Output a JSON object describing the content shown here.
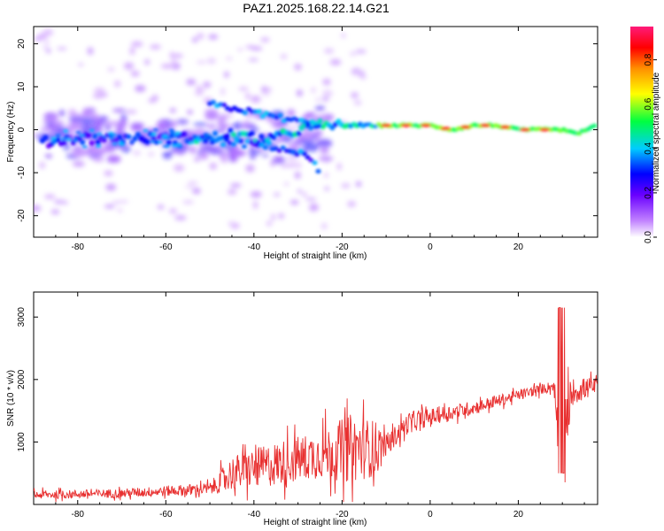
{
  "title": "PAZ1.2025.168.22.14.G21",
  "chart_data": [
    {
      "type": "heatmap",
      "xlabel": "Height of straight line (km)",
      "ylabel": "Frequency (Hz)",
      "xlim": [
        -90,
        38
      ],
      "ylim": [
        -25,
        24
      ],
      "xticks": [
        -80,
        -60,
        -40,
        -20,
        0,
        20
      ],
      "yticks": [
        -20,
        -10,
        0,
        10,
        20
      ],
      "colorbar": {
        "label": "Normalized spectral amplitude",
        "range": [
          0,
          0.95
        ],
        "ticks": [
          0.0,
          0.2,
          0.4,
          0.6,
          0.8
        ],
        "colors": [
          "#ffffff",
          "#9b30ff",
          "#0000ff",
          "#00ffff",
          "#00ff00",
          "#ffff00",
          "#ff8000",
          "#ff0000",
          "#ff1493"
        ]
      },
      "main_trace": [
        {
          "x": -88,
          "y": -3
        },
        {
          "x": -80,
          "y": -2
        },
        {
          "x": -70,
          "y": -2
        },
        {
          "x": -60,
          "y": -2
        },
        {
          "x": -50,
          "y": -2
        },
        {
          "x": -45,
          "y": -1
        },
        {
          "x": -40,
          "y": -2
        },
        {
          "x": -35,
          "y": -2
        },
        {
          "x": -30,
          "y": 0
        },
        {
          "x": -25,
          "y": 1
        },
        {
          "x": -20,
          "y": 1
        },
        {
          "x": -15,
          "y": 1
        },
        {
          "x": -10,
          "y": 1
        },
        {
          "x": -5,
          "y": 1
        },
        {
          "x": 0,
          "y": 1
        },
        {
          "x": 5,
          "y": 0
        },
        {
          "x": 10,
          "y": 1
        },
        {
          "x": 15,
          "y": 1
        },
        {
          "x": 20,
          "y": 0
        },
        {
          "x": 25,
          "y": 0
        },
        {
          "x": 30,
          "y": 0
        },
        {
          "x": 33,
          "y": -1
        },
        {
          "x": 38,
          "y": 1
        }
      ],
      "upper_branch": [
        {
          "x": -50,
          "y": 6
        },
        {
          "x": -45,
          "y": 5
        },
        {
          "x": -40,
          "y": 4
        },
        {
          "x": -35,
          "y": 3
        },
        {
          "x": -30,
          "y": 2
        },
        {
          "x": -25,
          "y": 1
        }
      ],
      "lower_branch": [
        {
          "x": -55,
          "y": -2
        },
        {
          "x": -45,
          "y": -3
        },
        {
          "x": -35,
          "y": -4
        },
        {
          "x": -28,
          "y": -6
        },
        {
          "x": -25,
          "y": -10
        }
      ]
    },
    {
      "type": "line",
      "xlabel": "Height of straight line (km)",
      "ylabel": "SNR (10 * v/v)",
      "xlim": [
        -90,
        38
      ],
      "ylim": [
        0,
        3400
      ],
      "xticks": [
        -80,
        -60,
        -40,
        -20,
        0,
        20
      ],
      "yticks": [
        1000,
        2000,
        3000
      ],
      "color": "#e83030",
      "envelope": [
        {
          "x": -90,
          "mean": 150,
          "amp": 120
        },
        {
          "x": -70,
          "mean": 180,
          "amp": 130
        },
        {
          "x": -50,
          "mean": 250,
          "amp": 180
        },
        {
          "x": -45,
          "mean": 500,
          "amp": 500
        },
        {
          "x": -35,
          "mean": 650,
          "amp": 650
        },
        {
          "x": -25,
          "mean": 800,
          "amp": 700
        },
        {
          "x": -18,
          "mean": 900,
          "amp": 1000
        },
        {
          "x": -12,
          "mean": 900,
          "amp": 800
        },
        {
          "x": -10,
          "mean": 950,
          "amp": 300
        },
        {
          "x": -5,
          "mean": 1300,
          "amp": 300
        },
        {
          "x": 0,
          "mean": 1400,
          "amp": 250
        },
        {
          "x": 10,
          "mean": 1550,
          "amp": 200
        },
        {
          "x": 20,
          "mean": 1750,
          "amp": 150
        },
        {
          "x": 28,
          "mean": 1900,
          "amp": 150
        },
        {
          "x": 30,
          "mean": 600,
          "amp": 1800
        },
        {
          "x": 32,
          "mean": 1800,
          "amp": 400
        },
        {
          "x": 38,
          "mean": 1900,
          "amp": 250
        }
      ]
    }
  ]
}
